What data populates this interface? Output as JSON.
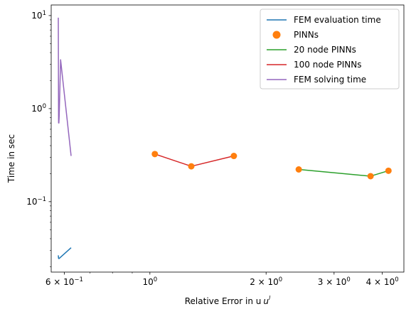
{
  "chart_data": {
    "type": "line",
    "xlabel": "Relative Error in u",
    "xlabel_superscript": "l",
    "ylabel": "Time in sec",
    "xscale": "log",
    "yscale": "log",
    "xlim": [
      0.555,
      4.55
    ],
    "ylim": [
      0.0175,
      13.0
    ],
    "grid": false,
    "legend_position": "top-right",
    "x_ticks": [
      {
        "value": 0.6,
        "label_base": "6 × 10",
        "label_exp": "−1"
      },
      {
        "value": 1.0,
        "label_base": "10",
        "label_exp": "0"
      },
      {
        "value": 2.0,
        "label_base": "2 × 10",
        "label_exp": "0"
      },
      {
        "value": 3.0,
        "label_base": "3 × 10",
        "label_exp": "0"
      },
      {
        "value": 4.0,
        "label_base": "4 × 10",
        "label_exp": "0"
      }
    ],
    "y_ticks": [
      {
        "value": 0.1,
        "label_base": "10",
        "label_exp": "−1"
      },
      {
        "value": 1.0,
        "label_base": "10",
        "label_exp": "0"
      },
      {
        "value": 10.0,
        "label_base": "10",
        "label_exp": "1"
      }
    ],
    "series": [
      {
        "name": "FEM evaluation time",
        "kind": "line",
        "color": "#1f77b4",
        "x": [
          0.579,
          0.58,
          0.582,
          0.625
        ],
        "y": [
          0.0265,
          0.0245,
          0.0245,
          0.032
        ]
      },
      {
        "name": "PINNs",
        "kind": "scatter",
        "color": "#ff7f0e",
        "x": [
          1.03,
          1.28,
          1.65,
          2.43,
          3.73,
          4.15
        ],
        "y": [
          0.325,
          0.24,
          0.31,
          0.222,
          0.188,
          0.215
        ]
      },
      {
        "name": "20 node PINNs",
        "kind": "line",
        "color": "#2ca02c",
        "x": [
          2.43,
          3.73,
          4.15
        ],
        "y": [
          0.222,
          0.188,
          0.215
        ]
      },
      {
        "name": "100 node PINNs",
        "kind": "line",
        "color": "#d62728",
        "x": [
          1.03,
          1.28,
          1.65
        ],
        "y": [
          0.325,
          0.24,
          0.31
        ]
      },
      {
        "name": "FEM solving time",
        "kind": "line",
        "color": "#9467bd",
        "x": [
          0.579,
          0.58,
          0.581,
          0.582,
          0.587,
          0.625
        ],
        "y": [
          9.5,
          0.7,
          0.7,
          0.82,
          3.35,
          0.31
        ]
      }
    ]
  }
}
